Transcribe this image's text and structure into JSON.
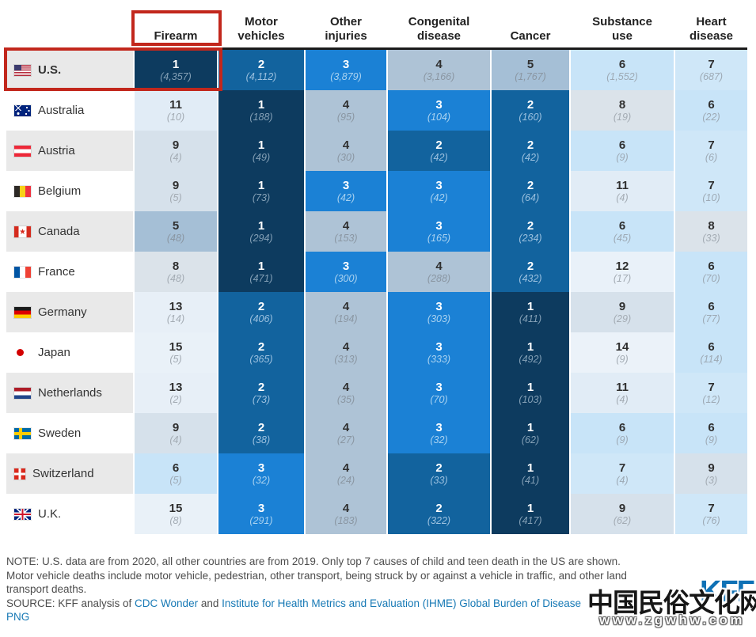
{
  "table": {
    "columns": [
      "Firearm",
      "Motor\nvehicles",
      "Other\ninjuries",
      "Congenital\ndisease",
      "Cancer",
      "Substance\nuse",
      "Heart\ndisease"
    ],
    "rows": [
      {
        "country": "U.S.",
        "flag": "us",
        "bold": true,
        "cells": [
          {
            "rank": 1,
            "count": "(4,357)"
          },
          {
            "rank": 2,
            "count": "(4,112)"
          },
          {
            "rank": 3,
            "count": "(3,879)"
          },
          {
            "rank": 4,
            "count": "(3,166)"
          },
          {
            "rank": 5,
            "count": "(1,767)"
          },
          {
            "rank": 6,
            "count": "(1,552)"
          },
          {
            "rank": 7,
            "count": "(687)"
          }
        ]
      },
      {
        "country": "Australia",
        "flag": "au",
        "cells": [
          {
            "rank": 11,
            "count": "(10)"
          },
          {
            "rank": 1,
            "count": "(188)"
          },
          {
            "rank": 4,
            "count": "(95)"
          },
          {
            "rank": 3,
            "count": "(104)"
          },
          {
            "rank": 2,
            "count": "(160)"
          },
          {
            "rank": 8,
            "count": "(19)"
          },
          {
            "rank": 6,
            "count": "(22)"
          }
        ]
      },
      {
        "country": "Austria",
        "flag": "at",
        "cells": [
          {
            "rank": 9,
            "count": "(4)"
          },
          {
            "rank": 1,
            "count": "(49)"
          },
          {
            "rank": 4,
            "count": "(30)"
          },
          {
            "rank": 2,
            "count": "(42)"
          },
          {
            "rank": 2,
            "count": "(42)"
          },
          {
            "rank": 6,
            "count": "(9)"
          },
          {
            "rank": 7,
            "count": "(6)"
          }
        ]
      },
      {
        "country": "Belgium",
        "flag": "be",
        "cells": [
          {
            "rank": 9,
            "count": "(5)"
          },
          {
            "rank": 1,
            "count": "(73)"
          },
          {
            "rank": 3,
            "count": "(42)"
          },
          {
            "rank": 3,
            "count": "(42)"
          },
          {
            "rank": 2,
            "count": "(64)"
          },
          {
            "rank": 11,
            "count": "(4)"
          },
          {
            "rank": 7,
            "count": "(10)"
          }
        ]
      },
      {
        "country": "Canada",
        "flag": "ca",
        "cells": [
          {
            "rank": 5,
            "count": "(48)"
          },
          {
            "rank": 1,
            "count": "(294)"
          },
          {
            "rank": 4,
            "count": "(153)"
          },
          {
            "rank": 3,
            "count": "(165)"
          },
          {
            "rank": 2,
            "count": "(234)"
          },
          {
            "rank": 6,
            "count": "(45)"
          },
          {
            "rank": 8,
            "count": "(33)"
          }
        ]
      },
      {
        "country": "France",
        "flag": "fr",
        "cells": [
          {
            "rank": 8,
            "count": "(48)"
          },
          {
            "rank": 1,
            "count": "(471)"
          },
          {
            "rank": 3,
            "count": "(300)"
          },
          {
            "rank": 4,
            "count": "(288)"
          },
          {
            "rank": 2,
            "count": "(432)"
          },
          {
            "rank": 12,
            "count": "(17)"
          },
          {
            "rank": 6,
            "count": "(70)"
          }
        ]
      },
      {
        "country": "Germany",
        "flag": "de",
        "cells": [
          {
            "rank": 13,
            "count": "(14)"
          },
          {
            "rank": 2,
            "count": "(406)"
          },
          {
            "rank": 4,
            "count": "(194)"
          },
          {
            "rank": 3,
            "count": "(303)"
          },
          {
            "rank": 1,
            "count": "(411)"
          },
          {
            "rank": 9,
            "count": "(29)"
          },
          {
            "rank": 6,
            "count": "(77)"
          }
        ]
      },
      {
        "country": "Japan",
        "flag": "jp",
        "cells": [
          {
            "rank": 15,
            "count": "(5)"
          },
          {
            "rank": 2,
            "count": "(365)"
          },
          {
            "rank": 4,
            "count": "(313)"
          },
          {
            "rank": 3,
            "count": "(333)"
          },
          {
            "rank": 1,
            "count": "(492)"
          },
          {
            "rank": 14,
            "count": "(9)"
          },
          {
            "rank": 6,
            "count": "(114)"
          }
        ]
      },
      {
        "country": "Netherlands",
        "flag": "nl",
        "cells": [
          {
            "rank": 13,
            "count": "(2)"
          },
          {
            "rank": 2,
            "count": "(73)"
          },
          {
            "rank": 4,
            "count": "(35)"
          },
          {
            "rank": 3,
            "count": "(70)"
          },
          {
            "rank": 1,
            "count": "(103)"
          },
          {
            "rank": 11,
            "count": "(4)"
          },
          {
            "rank": 7,
            "count": "(12)"
          }
        ]
      },
      {
        "country": "Sweden",
        "flag": "se",
        "cells": [
          {
            "rank": 9,
            "count": "(4)"
          },
          {
            "rank": 2,
            "count": "(38)"
          },
          {
            "rank": 4,
            "count": "(27)"
          },
          {
            "rank": 3,
            "count": "(32)"
          },
          {
            "rank": 1,
            "count": "(62)"
          },
          {
            "rank": 6,
            "count": "(9)"
          },
          {
            "rank": 6,
            "count": "(9)"
          }
        ]
      },
      {
        "country": "Switzerland",
        "flag": "ch",
        "cells": [
          {
            "rank": 6,
            "count": "(5)"
          },
          {
            "rank": 3,
            "count": "(32)"
          },
          {
            "rank": 4,
            "count": "(24)"
          },
          {
            "rank": 2,
            "count": "(33)"
          },
          {
            "rank": 1,
            "count": "(41)"
          },
          {
            "rank": 7,
            "count": "(4)"
          },
          {
            "rank": 9,
            "count": "(3)"
          }
        ]
      },
      {
        "country": "U.K.",
        "flag": "uk",
        "cells": [
          {
            "rank": 15,
            "count": "(8)"
          },
          {
            "rank": 3,
            "count": "(291)"
          },
          {
            "rank": 4,
            "count": "(183)"
          },
          {
            "rank": 2,
            "count": "(322)"
          },
          {
            "rank": 1,
            "count": "(417)"
          },
          {
            "rank": 9,
            "count": "(62)"
          },
          {
            "rank": 7,
            "count": "(76)"
          }
        ]
      }
    ]
  },
  "rank_colors": {
    "1": {
      "bg": "#0D3B5F",
      "num": "#FFFFFF",
      "count": "#84A0B6"
    },
    "2": {
      "bg": "#12639E",
      "num": "#FFFFFF",
      "count": "#9CC1DF"
    },
    "3": {
      "bg": "#1B81D5",
      "num": "#FFFFFF",
      "count": "#A9D2F0"
    },
    "4": {
      "bg": "#AEC3D6",
      "num": "#2F2F2F",
      "count": "#8A96A2"
    },
    "5": {
      "bg": "#A5BFD6",
      "num": "#2F2F2F",
      "count": "#8A96A2"
    },
    "6": {
      "bg": "#C8E4F8",
      "num": "#2F2F2F",
      "count": "#9DA9B4"
    },
    "7": {
      "bg": "#CFE7F8",
      "num": "#2F2F2F",
      "count": "#9DA9B4"
    },
    "8": {
      "bg": "#DBE3EA",
      "num": "#2F2F2F",
      "count": "#A3ABB3"
    },
    "9": {
      "bg": "#D6E1EB",
      "num": "#2F2F2F",
      "count": "#A3ABB3"
    },
    "11": {
      "bg": "#E1ECF6",
      "num": "#2F2F2F",
      "count": "#A3ABB3"
    },
    "12": {
      "bg": "#E9F1F9",
      "num": "#2F2F2F",
      "count": "#A3ABB3"
    },
    "13": {
      "bg": "#E7EFF7",
      "num": "#2F2F2F",
      "count": "#A3ABB3"
    },
    "14": {
      "bg": "#EBF2F9",
      "num": "#2F2F2F",
      "count": "#A3ABB3"
    },
    "15": {
      "bg": "#E9F1F8",
      "num": "#2F2F2F",
      "count": "#A3ABB3"
    }
  },
  "colors": {
    "highlight_red": "#C2271C",
    "header_divider": "#1B1B1B",
    "link_blue": "#1779B5",
    "kff_blue": "#0F71B5",
    "zebra_gray": "#E9E9E9"
  },
  "notes": {
    "line1": "NOTE: U.S. data are from 2020, all other countries are from 2019. Only top 7 causes of child and teen death in the US are shown.",
    "line2": "Motor vehicle deaths include motor vehicle, pedestrian, other transport, being struck by or against a vehicle in traffic, and other land",
    "line3": "transport deaths.",
    "source_prefix": "SOURCE: KFF analysis of ",
    "source_link1": "CDC Wonder",
    "source_mid": " and ",
    "source_link2": "Institute for Health Metrics and Evaluation (IHME) Global Burden of Disease",
    "png_link": "PNG"
  },
  "watermark": {
    "kff_logo": "KFF",
    "site_name": "中国民俗文化网",
    "site_url": "www.zgwhw.com"
  },
  "chart_data": {
    "type": "heatmap",
    "title": "",
    "columns": [
      "Firearm",
      "Motor vehicles",
      "Other injuries",
      "Congenital disease",
      "Cancer",
      "Substance use",
      "Heart disease"
    ],
    "rows": [
      "U.S.",
      "Australia",
      "Austria",
      "Belgium",
      "Canada",
      "France",
      "Germany",
      "Japan",
      "Netherlands",
      "Sweden",
      "Switzerland",
      "U.K."
    ],
    "ranks": [
      [
        1,
        2,
        3,
        4,
        5,
        6,
        7
      ],
      [
        11,
        1,
        4,
        3,
        2,
        8,
        6
      ],
      [
        9,
        1,
        4,
        2,
        2,
        6,
        7
      ],
      [
        9,
        1,
        3,
        3,
        2,
        11,
        7
      ],
      [
        5,
        1,
        4,
        3,
        2,
        6,
        8
      ],
      [
        8,
        1,
        3,
        4,
        2,
        12,
        6
      ],
      [
        13,
        2,
        4,
        3,
        1,
        9,
        6
      ],
      [
        15,
        2,
        4,
        3,
        1,
        14,
        6
      ],
      [
        13,
        2,
        4,
        3,
        1,
        11,
        7
      ],
      [
        9,
        2,
        4,
        3,
        1,
        6,
        6
      ],
      [
        6,
        3,
        4,
        2,
        1,
        7,
        9
      ],
      [
        15,
        3,
        4,
        2,
        1,
        9,
        7
      ]
    ],
    "deaths": [
      [
        4357,
        4112,
        3879,
        3166,
        1767,
        1552,
        687
      ],
      [
        10,
        188,
        95,
        104,
        160,
        19,
        22
      ],
      [
        4,
        49,
        30,
        42,
        42,
        9,
        6
      ],
      [
        5,
        73,
        42,
        42,
        64,
        4,
        10
      ],
      [
        48,
        294,
        153,
        165,
        234,
        45,
        33
      ],
      [
        48,
        471,
        300,
        288,
        432,
        17,
        70
      ],
      [
        14,
        406,
        194,
        303,
        411,
        29,
        77
      ],
      [
        5,
        365,
        313,
        333,
        492,
        9,
        114
      ],
      [
        2,
        73,
        35,
        70,
        103,
        4,
        12
      ],
      [
        4,
        38,
        27,
        32,
        62,
        9,
        9
      ],
      [
        5,
        32,
        24,
        33,
        41,
        4,
        3
      ],
      [
        8,
        291,
        183,
        322,
        417,
        62,
        76
      ]
    ],
    "legend_position": "none",
    "color_encoding": "cell shade encodes rank within country; 1 = darkest navy, higher ranks progressively lighter"
  }
}
